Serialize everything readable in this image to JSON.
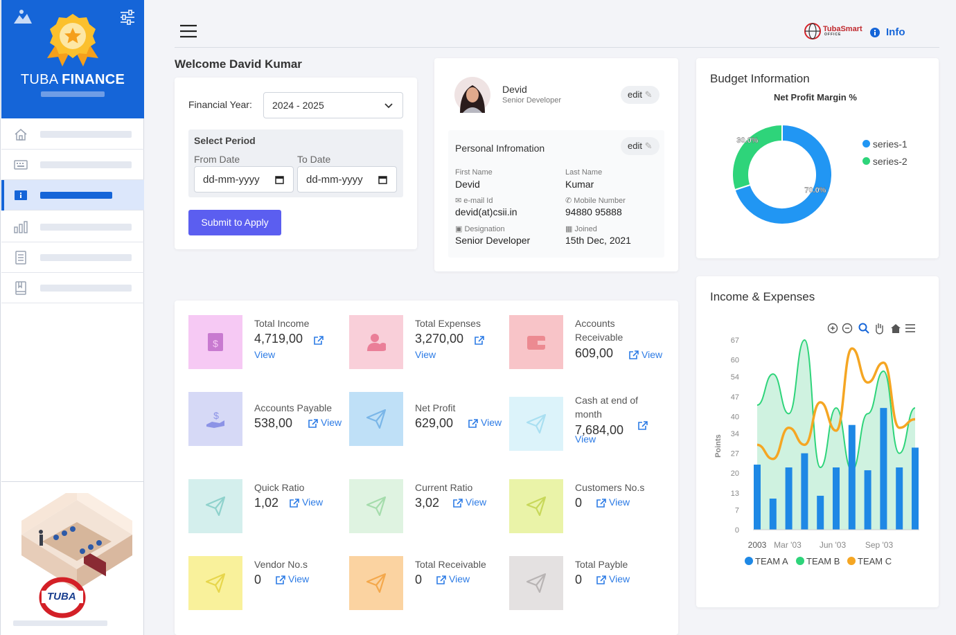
{
  "brand": {
    "name_light": "TUBA ",
    "name_bold": "FINANCE",
    "logo_text": "TUBA"
  },
  "header": {
    "info_label": "Info",
    "logo_text": "TubaSmart",
    "logo_sub": "OFFICE"
  },
  "welcome": {
    "title": "Welcome David Kumar"
  },
  "financial": {
    "label": "Financial Year:",
    "value": "2024 - 2025",
    "period_label": "Select Period",
    "from_label": "From Date",
    "to_label": "To Date",
    "from_placeholder": "dd-mm-yyyy",
    "to_placeholder": "dd-mm-yyyy",
    "submit_label": "Submit to Apply"
  },
  "profile": {
    "name": "Devid",
    "role": "Senior Developer",
    "edit_label": "edit",
    "personal_title": "Personal Infromation",
    "first_name_label": "First Name",
    "first_name": "Devid",
    "last_name_label": "Last Name",
    "last_name": "Kumar",
    "email_label": "e-mail Id",
    "email": "devid(at)csii.in",
    "mobile_label": "Mobile Number",
    "mobile": "94880 95888",
    "designation_label": "Designation",
    "designation": "Senior Developer",
    "joined_label": "Joined",
    "joined": "15th Dec, 2021"
  },
  "budget": {
    "title": "Budget Information",
    "subtitle": "Net Profit Margin %",
    "legend": [
      "series-1",
      "series-2"
    ],
    "labels": [
      "30.0%",
      "70.0%"
    ]
  },
  "stats": [
    {
      "title": "Total Income",
      "value": "4,719,00",
      "link": "View",
      "color": "#f6c9f4"
    },
    {
      "title": "Total Expenses",
      "value": "3,270,00",
      "link": "View",
      "color": "#f9cfd9"
    },
    {
      "title": "Accounts Receivable",
      "value": "609,00",
      "link": "View",
      "color": "#f8c4c8"
    },
    {
      "title": "Accounts Payable",
      "value": "538,00",
      "link": "View",
      "color": "#d6d9f6"
    },
    {
      "title": "Net Profit",
      "value": "629,00",
      "link": "View",
      "color": "#bfe0f7"
    },
    {
      "title": "Cash at end of month",
      "value": "7,684,00",
      "link": "View",
      "color": "#dcf3fa"
    },
    {
      "title": "Quick Ratio",
      "value": "1,02",
      "link": "View",
      "color": "#d4efed"
    },
    {
      "title": "Current Ratio",
      "value": "3,02",
      "link": "View",
      "color": "#dff3e1"
    },
    {
      "title": "Customers No.s",
      "value": "0",
      "link": "View",
      "color": "#eaf3a8"
    },
    {
      "title": "Vendor No.s",
      "value": "0",
      "link": "View",
      "color": "#f9f19b"
    },
    {
      "title": "Total Receivable",
      "value": "0",
      "link": "View",
      "color": "#fbd3a1"
    },
    {
      "title": "Total Payble",
      "value": "0",
      "link": "View",
      "color": "#e4e1e1"
    }
  ],
  "income_chart": {
    "title": "Income & Expenses",
    "ylabel": "Points"
  },
  "chart_data": [
    {
      "type": "pie",
      "title": "Net Profit Margin %",
      "categories": [
        "series-1",
        "series-2"
      ],
      "values": [
        70,
        30
      ],
      "colors": [
        "#2196f3",
        "#2ed47a"
      ],
      "legend": "right"
    },
    {
      "type": "line",
      "title": "Income & Expenses",
      "ylabel": "Points",
      "ylim": [
        0,
        67
      ],
      "yticks": [
        "0",
        "7",
        "13",
        "20",
        "27",
        "34",
        "40",
        "47",
        "54",
        "60",
        "67"
      ],
      "xticks": [
        "2003",
        "Mar '03",
        "Jun '03",
        "Sep '03"
      ],
      "series": [
        {
          "name": "TEAM A",
          "type": "bar",
          "color": "#1e88e5",
          "values": [
            23,
            11,
            22,
            27,
            12,
            22,
            37,
            21,
            43,
            22,
            29
          ]
        },
        {
          "name": "TEAM B",
          "type": "area",
          "color": "#2ed47a",
          "values": [
            44,
            55,
            41,
            67,
            22,
            43,
            21,
            41,
            56,
            27,
            43
          ]
        },
        {
          "name": "TEAM C",
          "type": "line",
          "color": "#f5a623",
          "values": [
            30,
            25,
            36,
            30,
            45,
            35,
            64,
            52,
            59,
            36,
            39
          ]
        }
      ],
      "legend": "bottom"
    }
  ]
}
